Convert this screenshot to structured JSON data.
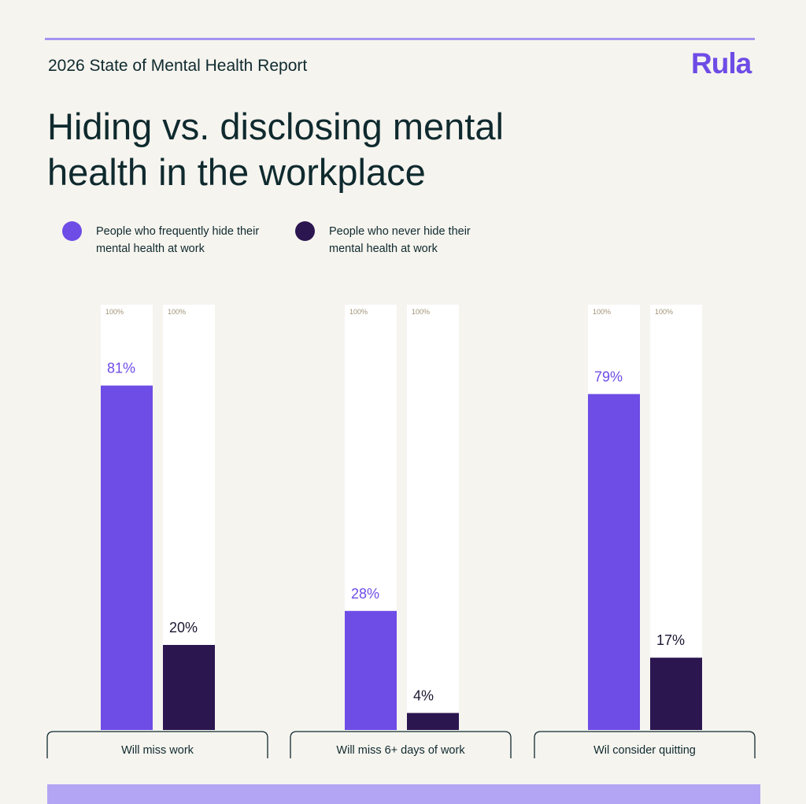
{
  "header": {
    "report_title": "2026 State of Mental Health Report",
    "logo_text": "Rula",
    "headline": "Hiding vs. disclosing mental health in the workplace"
  },
  "colors": {
    "background": "#f6f4ef",
    "accent_rule": "#a593f2",
    "series_hide": "#6e4ce6",
    "series_never": "#2b1650",
    "track": "#ffffff",
    "text": "#0f2a2e"
  },
  "legend": [
    {
      "label": "People who frequently hide their\nmental health at work",
      "color": "#6e4ce6"
    },
    {
      "label": "People who never hide their\nmental health at work",
      "color": "#2b1650"
    }
  ],
  "chart_data": {
    "type": "bar",
    "categories": [
      "Will miss work",
      "Will miss 6+ days of work",
      "Wil consider quitting"
    ],
    "series": [
      {
        "name": "People who frequently hide their mental health at work",
        "values": [
          81,
          28,
          79
        ],
        "labels": [
          "81%",
          "28%",
          "79%"
        ]
      },
      {
        "name": "People who never hide their mental health at work",
        "values": [
          20,
          4,
          17
        ],
        "labels": [
          "20%",
          "4%",
          "17%"
        ]
      }
    ],
    "max_label": "100%",
    "ylim": [
      0,
      100
    ]
  }
}
